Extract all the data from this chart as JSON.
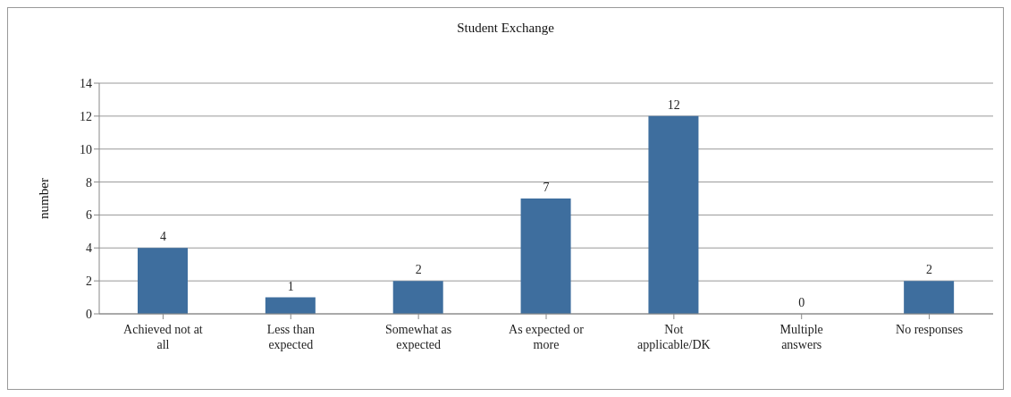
{
  "chart_data": {
    "type": "bar",
    "title": "Student Exchange",
    "ylabel": "number",
    "categories": [
      "Achieved not at all",
      "Less than expected",
      "Somewhat as expected",
      "As expected or more",
      "Not applicable/DK",
      "Multiple answers",
      "No responses"
    ],
    "values": [
      4,
      1,
      2,
      7,
      12,
      0,
      2
    ],
    "color": "#3e6e9e",
    "ylim": [
      0,
      14
    ],
    "yticks": [
      0,
      2,
      4,
      6,
      8,
      10,
      12,
      14
    ],
    "grid": "y",
    "data_labels": true,
    "legend": false
  }
}
